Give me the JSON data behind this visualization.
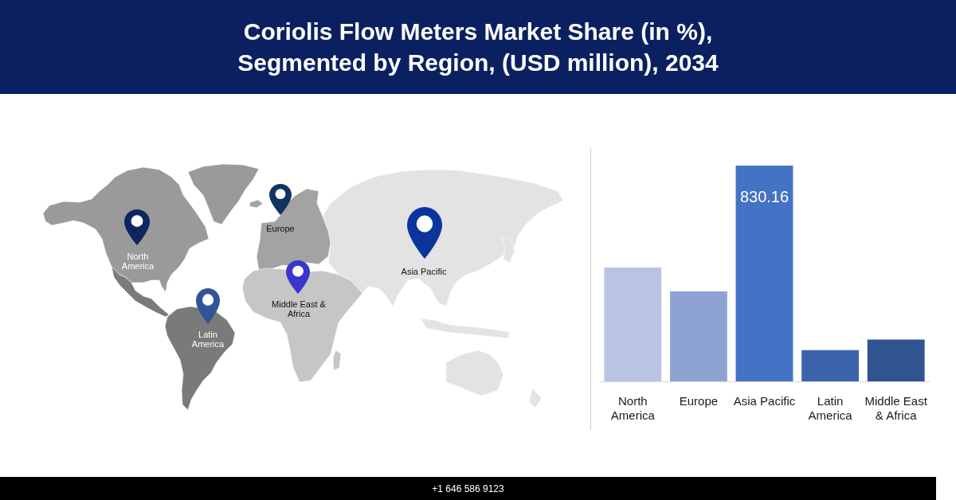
{
  "chart_data": {
    "type": "bar",
    "title": "Coriolis Flow Meters Market Share (in %), Segmented by Region, (USD million), 2034",
    "categories": [
      "North America",
      "Europe",
      "Asia Pacific",
      "Latin America",
      "Middle East & Africa"
    ],
    "values": [
      438,
      346,
      830.16,
      120,
      161
    ],
    "colors": [
      "#b9c4e3",
      "#8fa3d3",
      "#4472c4",
      "#3c64ad",
      "#30548f"
    ],
    "value_labels": [
      null,
      null,
      "830.16",
      null,
      null
    ],
    "annotations": [
      "+1 646 586 9123"
    ]
  }
}
